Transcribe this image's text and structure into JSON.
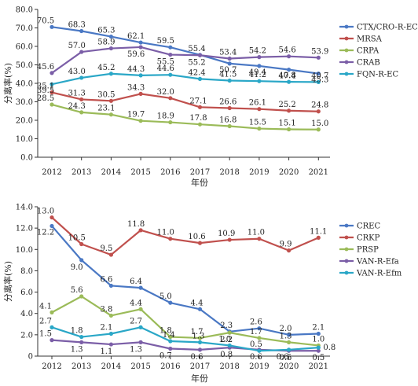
{
  "chart_data": [
    {
      "type": "line",
      "title": "",
      "xlabel": "年份",
      "ylabel": "分离率(%)",
      "ylim": [
        0,
        80
      ],
      "yticks": [
        "0.0",
        "10.0",
        "20.0",
        "30.0",
        "40.0",
        "50.0",
        "60.0",
        "70.0",
        "80.0"
      ],
      "categories": [
        "2012",
        "2013",
        "2014",
        "2015",
        "2016",
        "2017",
        "2018",
        "2019",
        "2020",
        "2021"
      ],
      "legend_position": "right",
      "series": [
        {
          "name": "CTX/CRO-R-EC",
          "color": "#4a78c4",
          "values": [
            70.5,
            68.3,
            65.3,
            62.1,
            59.5,
            55.4,
            50.7,
            49.4,
            47.4,
            45.3
          ],
          "labels": [
            "70.5",
            "68.3",
            "65.3",
            "62.1",
            "59.5",
            "55.4",
            "50.7",
            "49.4",
            "47.4",
            "45.3"
          ]
        },
        {
          "name": "MRSA",
          "color": "#c0504d",
          "values": [
            35.1,
            31.3,
            30.5,
            34.3,
            32.0,
            27.1,
            26.6,
            26.1,
            25.2,
            24.8
          ],
          "labels": [
            "35.1",
            "31.3",
            "30.5",
            "34.3",
            "32.0",
            "27.1",
            "26.6",
            "26.1",
            "25.2",
            "24.8"
          ]
        },
        {
          "name": "CRPA",
          "color": "#9bbb59",
          "values": [
            28.5,
            24.3,
            23.1,
            19.7,
            18.9,
            17.8,
            16.8,
            15.5,
            15.1,
            15.0
          ],
          "labels": [
            "28.5",
            "24.3",
            "23.1",
            "19.7",
            "18.9",
            "17.8",
            "16.8",
            "15.5",
            "15.1",
            "15.0"
          ]
        },
        {
          "name": "CRAB",
          "color": "#7b5ea7",
          "values": [
            45.6,
            57.0,
            58.9,
            59.6,
            55.5,
            55.2,
            53.4,
            54.2,
            54.6,
            53.9
          ],
          "labels": [
            "45.6",
            "57.0",
            "58.9",
            "59.6",
            "55.5",
            "55.2",
            "53.4",
            "54.2",
            "54.6",
            "53.9"
          ]
        },
        {
          "name": "FQN-R-EC",
          "color": "#2aa7c7",
          "values": [
            39.5,
            43.0,
            45.2,
            44.3,
            44.6,
            42.4,
            41.5,
            41.2,
            40.8,
            40.7
          ],
          "labels": [
            "39.5",
            "43.0",
            "45.2",
            "44.3",
            "44.6",
            "42.4",
            "41.5",
            "41.2",
            "40.8",
            "40.7"
          ]
        }
      ]
    },
    {
      "type": "line",
      "title": "",
      "xlabel": "年份",
      "ylabel": "分离率(%)",
      "ylim": [
        0,
        14
      ],
      "yticks": [
        "0",
        "2.0",
        "4.0",
        "6.0",
        "8.0",
        "10.0",
        "12.0",
        "14.0"
      ],
      "categories": [
        "2012",
        "2013",
        "2014",
        "2015",
        "2016",
        "2017",
        "2018",
        "2019",
        "2020",
        "2021"
      ],
      "legend_position": "right",
      "series": [
        {
          "name": "CREC",
          "color": "#4a78c4",
          "values": [
            12.2,
            9.0,
            6.6,
            6.4,
            5.0,
            4.4,
            2.3,
            2.6,
            2.0,
            2.1
          ],
          "labels": [
            "12.2",
            "9.0",
            "6.6",
            "6.4",
            "5.0",
            "4.4",
            "2.3",
            "2.6",
            "2.0",
            "2.1"
          ]
        },
        {
          "name": "CRKP",
          "color": "#c0504d",
          "values": [
            13.0,
            10.5,
            9.5,
            11.8,
            11.0,
            10.6,
            10.9,
            11.0,
            9.9,
            11.1
          ],
          "labels": [
            "13.0",
            "10.5",
            "9.5",
            "11.8",
            "11.0",
            "10.6",
            "10.9",
            "11.0",
            "9.9",
            "11.1"
          ]
        },
        {
          "name": "PRSP",
          "color": "#9bbb59",
          "values": [
            4.1,
            5.6,
            3.8,
            4.4,
            1.8,
            1.7,
            2.2,
            1.7,
            1.3,
            1.0
          ],
          "labels": [
            "4.1",
            "5.6",
            "3.8",
            "4.4",
            "1.8",
            "1.7",
            "2.2",
            "1.7",
            "1.3",
            "1.0"
          ]
        },
        {
          "name": "VAN-R-Efa",
          "color": "#7b5ea7",
          "values": [
            1.5,
            1.3,
            1.1,
            1.3,
            0.7,
            0.6,
            0.8,
            0.6,
            0.5,
            0.5
          ],
          "labels": [
            "1.5",
            "1.3",
            "1.1",
            "1.3",
            "0.7",
            "0.6",
            "0.8",
            "0.6",
            "0.5",
            "0.5"
          ]
        },
        {
          "name": "VAN-R-Efm",
          "color": "#2aa7c7",
          "values": [
            2.7,
            1.8,
            2.1,
            2.7,
            1.4,
            1.3,
            1.0,
            0.5,
            0.6,
            0.8
          ],
          "labels": [
            "2.7",
            "1.8",
            "2.1",
            "2.7",
            "1.4",
            "1.3",
            "1.0",
            "0.5",
            "0.6",
            "0.8"
          ]
        }
      ]
    }
  ]
}
